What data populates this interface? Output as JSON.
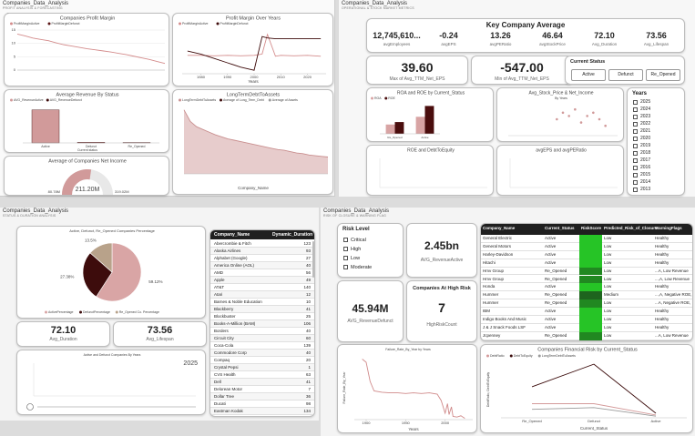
{
  "profit": {
    "title": "Companies_Data_Analysis",
    "subtitle": "PROFIT ANALYSIS & FORECASTING",
    "margin_chart": {
      "title": "Companies Profit Margin",
      "legend": [
        {
          "name": "ProfitMarginActive",
          "color": "#d48c8c"
        },
        {
          "name": "ProfitMarginDefunct",
          "color": "#5a1414"
        }
      ],
      "series": [
        [
          13.5,
          12.8,
          12,
          11.5,
          11,
          10.2,
          9.5,
          9,
          8.5,
          8,
          7.6,
          7.2,
          6.8,
          6.3,
          5.8,
          5.2,
          4.6,
          4,
          3.2,
          2.5
        ]
      ],
      "ylim": [
        0,
        15
      ],
      "yticks": [
        0,
        5,
        10,
        15
      ]
    },
    "years_chart": {
      "title": "Profit Margin Over Years",
      "legend": [
        {
          "name": "ProfitMarginActive",
          "color": "#d48c8c"
        },
        {
          "name": "ProfitMarginDefunct",
          "color": "#3d0a0a"
        }
      ],
      "x": [
        1975,
        1980,
        1985,
        1990,
        1995,
        2000,
        2003,
        2005,
        2008,
        2010,
        2015,
        2020,
        2025
      ],
      "series": [
        [
          0.42,
          0.42,
          0.41,
          0.42,
          0.41,
          0.42,
          0.45,
          0.9,
          0.4,
          0.42,
          0.41,
          0.42,
          0.4
        ],
        [
          0.52,
          0.45,
          0.35,
          0.25,
          0.15,
          0.08,
          0.85,
          0.82,
          0.8,
          0.8,
          0.8,
          0.8,
          0.8
        ]
      ],
      "xlim": [
        1973,
        2027
      ],
      "ylim": [
        0,
        1
      ],
      "xticks": [
        1980,
        1990,
        2000,
        2010,
        2020
      ],
      "x_label": "Years"
    },
    "revenue_chart": {
      "title": "Average Revenue By Status",
      "legend": [
        {
          "name": "AVG_RevenueActive",
          "color": "#d19a9a"
        },
        {
          "name": "AVG_RevenueDefunct",
          "color": "#3d0a0a"
        }
      ],
      "categories": [
        "Active",
        "Defunct",
        "Re_Opened"
      ],
      "series": [
        [
          2450,
          45.94,
          30
        ]
      ],
      "ylim": [
        0,
        2700
      ],
      "x_label": "Current status"
    },
    "debt_chart": {
      "title": "LongTermDebtToAssets",
      "legend": [
        {
          "name": "LongTermDebtToAssets",
          "color": "#c98f8f"
        },
        {
          "name": "Average of Long_Term_Debt",
          "color": "#3d0a0a"
        },
        {
          "name": "Average of Assets",
          "color": "#999999"
        }
      ],
      "series": [
        [
          0.95,
          0.78,
          0.7,
          0.66,
          0.62,
          0.58,
          0.55,
          0.52,
          0.5,
          0.48,
          0.46,
          0.44,
          0.42,
          0.4,
          0.38,
          0.36,
          0.35,
          0.33,
          0.31,
          0.3,
          0.28,
          0.27,
          0.26,
          0.25
        ]
      ],
      "ylim": [
        0,
        1
      ],
      "area": true,
      "x_label": "Company_Name"
    },
    "gauge": {
      "title": "Average of Companies Net Income",
      "color": "#d19a9a",
      "value": {
        "value": 211.2,
        "label": "211.20M"
      },
      "min": {
        "value": 80.78,
        "label": "80.78M"
      },
      "max": {
        "value": 319.02,
        "label": "319.02M"
      }
    }
  },
  "operations": {
    "title": "Companies_Data_Analysis",
    "subtitle": "OPERATIONAL & STOCK MARKET METRICS",
    "key": {
      "title": "Key Company Average",
      "cards": [
        {
          "value": "12,745,610...",
          "label": "avgEmployees"
        },
        {
          "value": "-0.24",
          "label": "avgEPS"
        },
        {
          "value": "13.26",
          "label": "avgPERatio"
        },
        {
          "value": "46.64",
          "label": "avgStockPrice"
        },
        {
          "value": "72.10",
          "label": "Avg_Duration"
        },
        {
          "value": "73.56",
          "label": "Avg_Lifespan"
        }
      ]
    },
    "eps_cards": [
      {
        "value": "39.60",
        "label": "Max of Avg_TTM_Net_EPS"
      },
      {
        "value": "-547.00",
        "label": "Min of Avg_TTM_Net_EPS"
      }
    ],
    "status_slicer": {
      "title": "Current Status",
      "options": [
        "Active",
        "Defunct",
        "Re_Opened"
      ]
    },
    "roa_chart": {
      "title": "ROA and ROE by Current_Status",
      "legend": [
        {
          "name": "ROA",
          "color": "#d8a4a4"
        },
        {
          "name": "ROE",
          "color": "#4a0d0d"
        }
      ],
      "categories": [
        "Re_Opened",
        "Active"
      ],
      "series": [
        [
          0.3,
          0.55
        ],
        [
          0.38,
          0.9
        ]
      ],
      "ylim": [
        0,
        1
      ]
    },
    "stock_chart": {
      "title": "Avg_Stock_Price & Net_Income",
      "subtitle": "By Years",
      "color": "#d19a9a",
      "x": [
        2016,
        2017,
        2018,
        2019,
        2020,
        2021,
        2022,
        2023,
        2024
      ],
      "values": [
        0.5,
        0.7,
        0.6,
        0.8,
        0.4,
        0.6,
        0.7,
        0.5,
        0.3
      ],
      "xlim": [
        2008,
        2026
      ],
      "ylim": [
        0,
        1
      ]
    },
    "roe_chart": {
      "title": "ROE and DebtToEquity"
    },
    "eps_chart": {
      "title": "avgEPS and avgPERatio"
    },
    "years_slicer": {
      "title": "Years",
      "options": [
        "2025",
        "2024",
        "2023",
        "2022",
        "2021",
        "2020",
        "2019",
        "2018",
        "2017",
        "2016",
        "2015",
        "2014",
        "2013"
      ]
    }
  },
  "status": {
    "title": "Companies_Data_Analysis",
    "subtitle": "STATUS & DURATION ANALYSIS",
    "pie": {
      "title": "Active, Defunct, Re_Opened Companies Percentage",
      "legend": [
        {
          "name": "ActivePercentage",
          "color": "#d9a5a5"
        },
        {
          "name": "DefunctPercentage",
          "color": "#3d0c0c"
        },
        {
          "name": "Re_Opened Co. Percentage",
          "color": "#b8a28a"
        }
      ],
      "values": [
        59.12,
        27.38,
        13.5
      ],
      "value_labels": [
        "59.12%",
        "27.38%",
        "13.5%"
      ]
    },
    "table": {
      "headers": [
        "Company_Name",
        "Dynamic_Duration"
      ],
      "rows": [
        [
          "Abercrombie & Fitch",
          "123"
        ],
        [
          "Alaska Airlines",
          "93"
        ],
        [
          "Alphabet (Google)",
          "27"
        ],
        [
          "America Online (AOL)",
          "40"
        ],
        [
          "AMD",
          "56"
        ],
        [
          "Apple",
          "49"
        ],
        [
          "AT&T",
          "140"
        ],
        [
          "Atari",
          "12"
        ],
        [
          "Barnes & Noble Education",
          "10"
        ],
        [
          "Blackberry",
          "41"
        ],
        [
          "Blockbuster",
          "25"
        ],
        [
          "Books-A-Million (BAM)",
          "106"
        ],
        [
          "Borders",
          "40"
        ],
        [
          "Circuit City",
          "60"
        ],
        [
          "Coca-Cola",
          "139"
        ],
        [
          "Commodore Corp",
          "40"
        ],
        [
          "Compaq",
          "20"
        ],
        [
          "Crystal Pepsi",
          "1"
        ],
        [
          "CVS Health",
          "63"
        ],
        [
          "Dell",
          "41"
        ],
        [
          "Delorean Motor",
          "7"
        ],
        [
          "Dollar Tree",
          "36"
        ],
        [
          "Ducati",
          "98"
        ],
        [
          "Eastman Kodak",
          "134"
        ]
      ]
    },
    "cards": [
      {
        "value": "72.10",
        "label": "Avg_Duration"
      },
      {
        "value": "73.56",
        "label": "Avg_Lifespan"
      }
    ],
    "play": {
      "title": "Active and Defunct Companies By Years",
      "year": "2025"
    }
  },
  "risk": {
    "title": "Companies_Data_Analysis",
    "subtitle": "RISK OF CLOSURE & WARNING FLAG",
    "risk_level": {
      "title": "Risk Level",
      "options": [
        "Critical",
        "High",
        "Low",
        "Moderate"
      ]
    },
    "revenue_active": {
      "value": "2.45bn",
      "label": "AVG_RevenueActive"
    },
    "revenue_defunct": {
      "value": "45.94M",
      "label": "AVG_RevenueDefunct"
    },
    "high_risk": {
      "title": "Companies At High Risk",
      "value": "7",
      "label": "HighRiskCount"
    },
    "table": {
      "headers": [
        "Company_Name",
        "Current_Status",
        "RiskScore",
        "Predicted_Risk_of_Closure",
        "WarningFlags"
      ],
      "rows": [
        [
          "General Electric",
          "Active",
          0.1,
          "Low",
          "Healthy"
        ],
        [
          "General Motors",
          "Active",
          0.1,
          "Low",
          "Healthy"
        ],
        [
          "Harley-Davidson",
          "Active",
          0.1,
          "Low",
          "Healthy"
        ],
        [
          "Hitachi",
          "Active",
          0.1,
          "Low",
          "Healthy"
        ],
        [
          "Hmv Group",
          "Re_Opened",
          0.35,
          "Low",
          "...A, Low Revenue"
        ],
        [
          "Hmv Group",
          "Re_Opened",
          0.35,
          "Low",
          "...,A, Low Revenue"
        ],
        [
          "Honda",
          "Active",
          0.1,
          "Low",
          "Healthy"
        ],
        [
          "Hummer",
          "Re_Opened",
          0.5,
          "Medium",
          "...,A, Negative ROE,"
        ],
        [
          "Hummer",
          "Re_Opened",
          0.35,
          "Low",
          "...A, Negative ROE,"
        ],
        [
          "IBM",
          "Active",
          0.1,
          "Low",
          "Healthy"
        ],
        [
          "Indigo Books And Music",
          "Active",
          0.1,
          "Low",
          "Healthy"
        ],
        [
          "J & J Snack Foods LSF",
          "Active",
          0.1,
          "Low",
          "Healthy"
        ],
        [
          "Jcpenney",
          "Re_Opened",
          0.35,
          "Low",
          "...A, Low Revenue"
        ]
      ]
    },
    "failure_chart": {
      "title": "Failure_Rate_By_Year by Years",
      "legend": [
        {
          "name": "Failure_Rate_By_Year",
          "color": "#d08a8a"
        }
      ],
      "x": [
        1895,
        1900,
        1905,
        1910,
        1920,
        1930,
        1940,
        1950,
        1960,
        1970,
        1980,
        1990,
        1995,
        2000,
        2003,
        2005,
        2008,
        2010,
        2015,
        2020,
        2025
      ],
      "series": [
        [
          0.95,
          0.9,
          0.6,
          0.45,
          0.43,
          0.42,
          0.42,
          0.41,
          0.42,
          0.41,
          0.42,
          0.4,
          0.3,
          0.1,
          0.25,
          0.08,
          0.2,
          0.05,
          0.04,
          0.06,
          0.02
        ]
      ],
      "xlim": [
        1885,
        2035
      ],
      "ylim": [
        0,
        1
      ],
      "xticks": [
        1900,
        1950,
        2000
      ],
      "x_label": "Years",
      "y_label": "Failure_Rate_By_Year"
    },
    "fin_chart": {
      "title": "Companies Financial Risk by Current_Status",
      "legend": [
        {
          "name": "DebtRatio",
          "color": "#d49a9a"
        },
        {
          "name": "DebtToEquity",
          "color": "#3a0a0a"
        },
        {
          "name": "LongTermDebtToAssets",
          "color": "#9a9a9a"
        }
      ],
      "categories": [
        "Re_Opened",
        "Defunct",
        "Active"
      ],
      "series": [
        [
          0.25,
          0.25,
          0.05
        ],
        [
          0.55,
          0.95,
          0.08
        ],
        [
          0.15,
          0.18,
          0.03
        ]
      ],
      "ylim": [
        0,
        1
      ],
      "x_label": "Current_Status",
      "y_label": "DebtRatio, DebtToEquity"
    }
  }
}
